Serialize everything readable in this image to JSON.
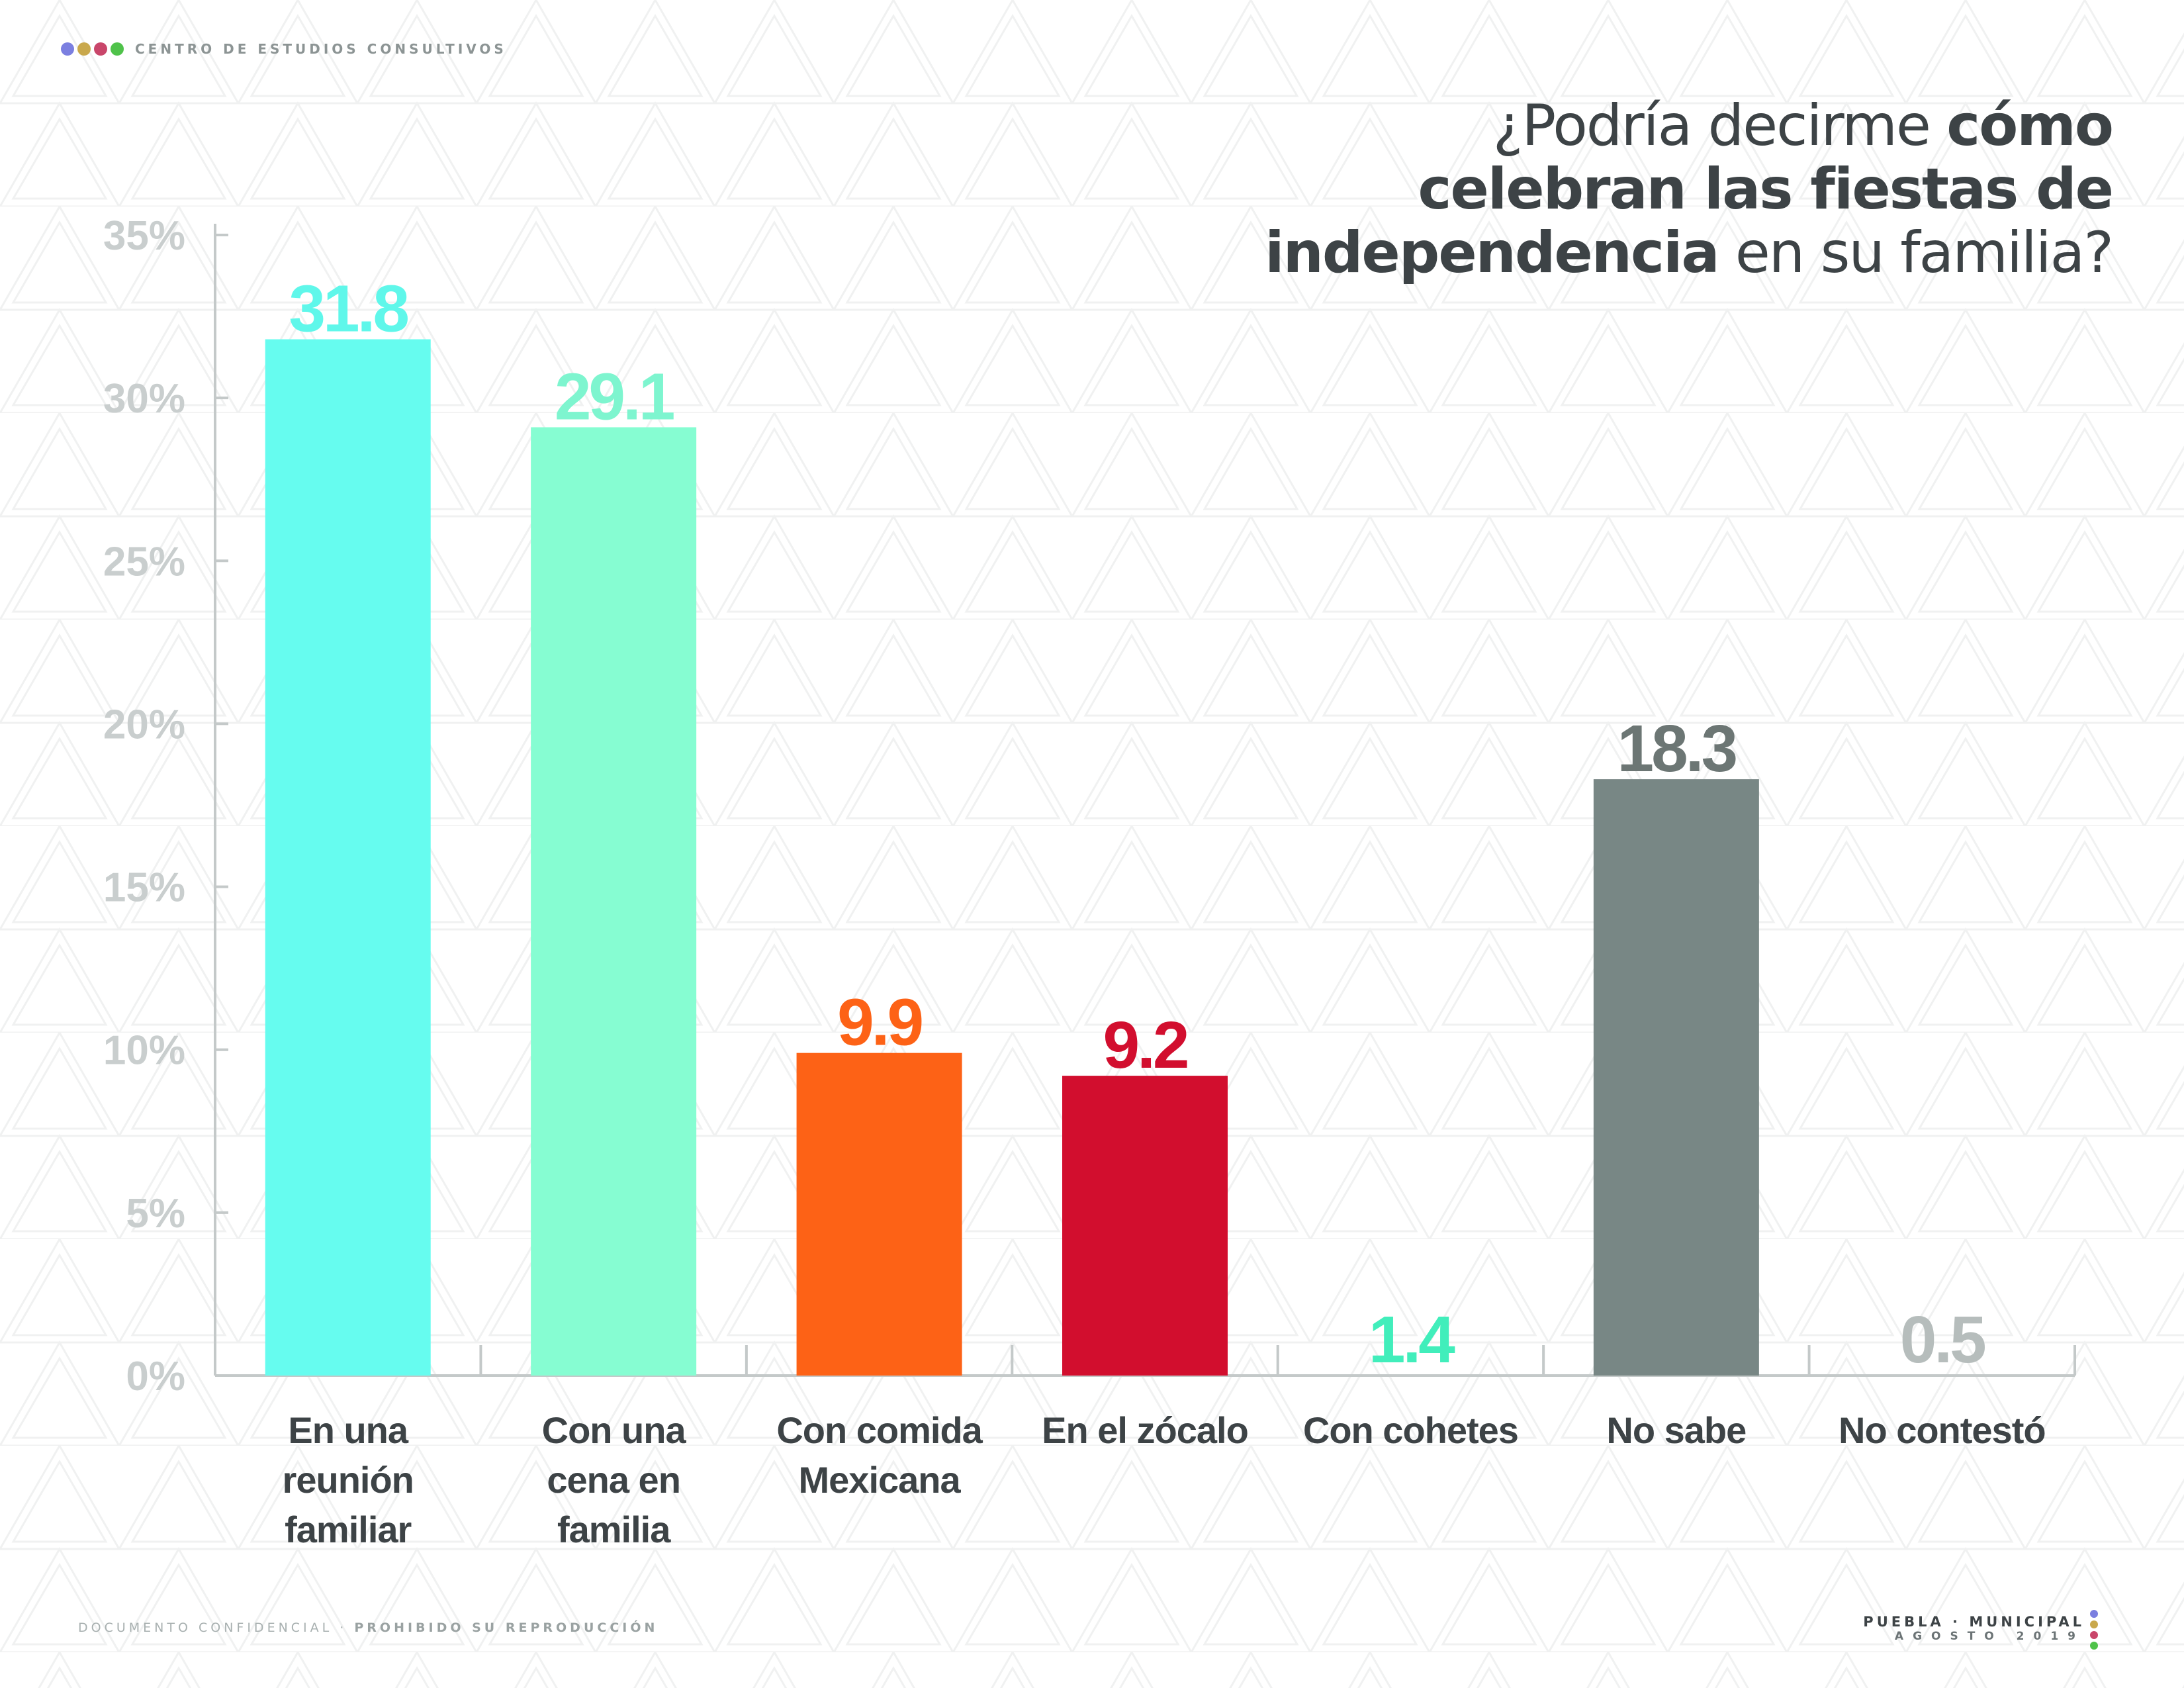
{
  "header": {
    "org_name": "CENTRO DE ESTUDIOS CONSULTIVOS",
    "dot_colors": [
      "#7b7fe0",
      "#c9a84c",
      "#c9466a",
      "#4fc24a"
    ]
  },
  "title": {
    "line1_regular": "¿Podría decirme ",
    "line1_bold": "cómo",
    "line2_bold": "celebran las fiestas de",
    "line3_bold": "independencia",
    "line3_regular": " en su familia?"
  },
  "chart_data": {
    "type": "bar",
    "categories": [
      [
        "En una",
        "reunión",
        "familiar"
      ],
      [
        "Con una",
        "cena en",
        "familia"
      ],
      [
        "Con comida",
        "Mexicana"
      ],
      [
        "En el zócalo"
      ],
      [
        "Con cohetes"
      ],
      [
        "No sabe"
      ],
      [
        "No contestó"
      ]
    ],
    "values": [
      31.8,
      29.1,
      9.9,
      9.2,
      1.4,
      18.3,
      0.5
    ],
    "data_labels": [
      "31.8",
      "29.1",
      "9.9",
      "9.2",
      "1.4",
      "18.3",
      "0.5"
    ],
    "bar_colors": [
      "#66fcef",
      "#86fdd2",
      "#fd6216",
      "#d20e2e",
      "#41eebb",
      "#788785",
      "#c5cbc9"
    ],
    "label_colors": [
      "#5ff7ea",
      "#7ef5cf",
      "#fd6216",
      "#d20e2e",
      "#41eebb",
      "#6c7674",
      "#b6bdbc"
    ],
    "y_ticks": [
      "0%",
      "5%",
      "10%",
      "15%",
      "20%",
      "25%",
      "30%",
      "35%"
    ],
    "ylim": [
      0,
      35
    ],
    "ytick_step": 5,
    "grid": false,
    "colors": {
      "axis": "#c4c9c9",
      "tick_text": "#c9cece",
      "category_text": "#3d4346"
    }
  },
  "footer": {
    "left_regular": "DOCUMENTO CONFIDENCIAL · ",
    "left_bold": "PROHIBIDO SU REPRODUCCIÓN",
    "place": "PUEBLA · MUNICIPAL",
    "date": "AGOSTO 2019",
    "dot_colors": [
      "#7b7fe0",
      "#c9a84c",
      "#c9466a",
      "#4fc24a"
    ]
  }
}
